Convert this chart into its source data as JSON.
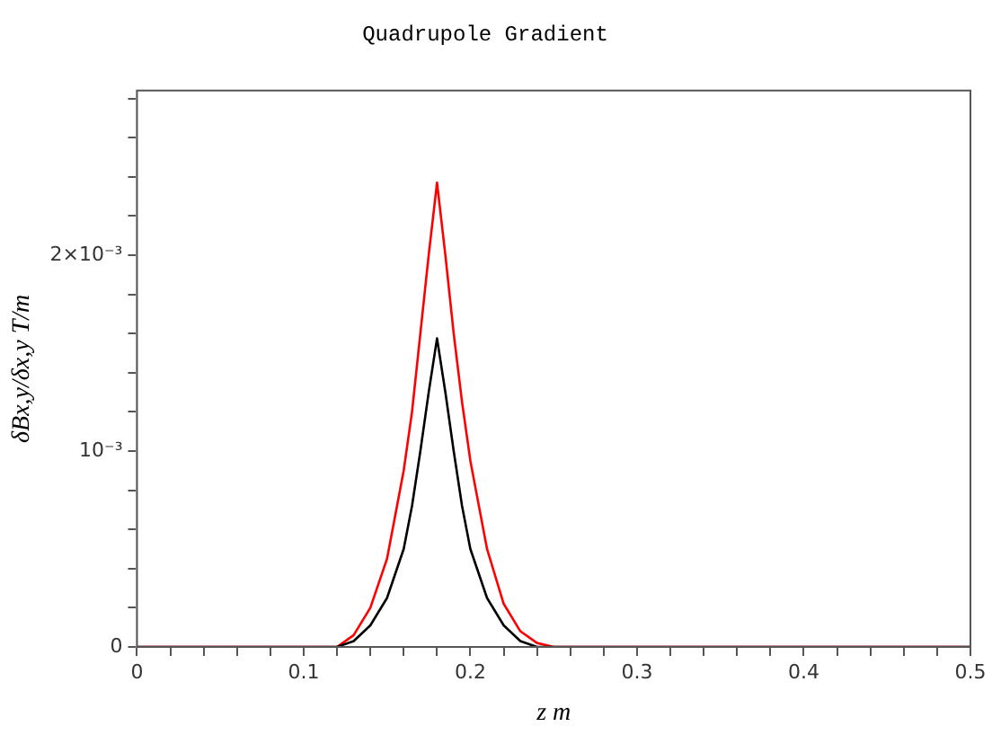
{
  "chart_data": {
    "type": "line",
    "title": "Quadrupole Gradient",
    "xlabel": "z m",
    "ylabel": "δBx,y/δx,y T/m",
    "xlim": [
      0,
      0.5
    ],
    "xticks": [
      0,
      {
        "value": 0.02,
        "label": null
      },
      {
        "value": 0.04,
        "label": null
      },
      {
        "value": 0.06,
        "label": null
      },
      {
        "value": 0.08,
        "label": null
      },
      0.1,
      {
        "value": 0.12,
        "label": null
      },
      {
        "value": 0.14,
        "label": null
      },
      {
        "value": 0.16,
        "label": null
      },
      {
        "value": 0.18,
        "label": null
      },
      0.2,
      {
        "value": 0.22,
        "label": null
      },
      {
        "value": 0.24,
        "label": null
      },
      {
        "value": 0.26,
        "label": null
      },
      {
        "value": 0.28,
        "label": null
      },
      0.3,
      {
        "value": 0.32,
        "label": null
      },
      {
        "value": 0.34,
        "label": null
      },
      {
        "value": 0.36,
        "label": null
      },
      {
        "value": 0.38,
        "label": null
      },
      0.4,
      {
        "value": 0.42,
        "label": null
      },
      {
        "value": 0.44,
        "label": null
      },
      {
        "value": 0.46,
        "label": null
      },
      {
        "value": 0.48,
        "label": null
      },
      0.5
    ],
    "ylim": [
      0,
      0.00284
    ],
    "yticks": [
      0,
      {
        "value": 0.0002,
        "label": null
      },
      {
        "value": 0.0004,
        "label": null
      },
      {
        "value": 0.0006,
        "label": null
      },
      {
        "value": 0.0008,
        "label": null
      },
      {
        "value": 0.001,
        "label": "10⁻³"
      },
      {
        "value": 0.0012,
        "label": null
      },
      {
        "value": 0.0014,
        "label": null
      },
      {
        "value": 0.0016,
        "label": null
      },
      {
        "value": 0.0018,
        "label": null
      },
      {
        "value": 0.002,
        "label": "2×10⁻³"
      },
      {
        "value": 0.0022,
        "label": null
      },
      {
        "value": 0.0024,
        "label": null
      },
      {
        "value": 0.0026,
        "label": null
      },
      {
        "value": 0.0028,
        "label": null
      }
    ],
    "marker": "none",
    "line_style": "solid",
    "series": [
      {
        "color": "#000000",
        "x": [
          0,
          0.1,
          0.12,
          0.13,
          0.14,
          0.15,
          0.16,
          0.165,
          0.17,
          0.175,
          0.18,
          0.185,
          0.19,
          0.195,
          0.2,
          0.21,
          0.22,
          0.23,
          0.24,
          0.5
        ],
        "values": [
          0,
          0,
          0,
          3e-05,
          0.00011,
          0.00025,
          0.0005,
          0.00072,
          0.001,
          0.0013,
          0.001575,
          0.0013,
          0.001,
          0.00072,
          0.0005,
          0.00025,
          0.00011,
          3e-05,
          0,
          0
        ]
      },
      {
        "color": "#ff0000",
        "x": [
          0,
          0.1,
          0.12,
          0.13,
          0.14,
          0.15,
          0.16,
          0.165,
          0.17,
          0.175,
          0.18,
          0.185,
          0.19,
          0.195,
          0.2,
          0.21,
          0.22,
          0.23,
          0.24,
          0.25,
          0.5
        ],
        "values": [
          0,
          0,
          0,
          6e-05,
          0.0002,
          0.00045,
          0.0009,
          0.0012,
          0.0016,
          0.002,
          0.00237,
          0.002,
          0.0016,
          0.00125,
          0.00095,
          0.0005,
          0.00022,
          8e-05,
          2e-05,
          0,
          0
        ]
      }
    ]
  }
}
